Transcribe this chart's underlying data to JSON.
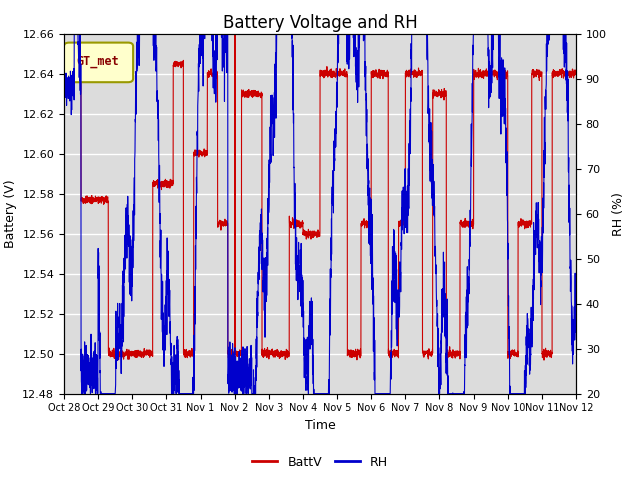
{
  "title": "Battery Voltage and RH",
  "xlabel": "Time",
  "ylabel_left": "Battery (V)",
  "ylabel_right": "RH (%)",
  "legend_label": "GT_met",
  "series": [
    "BattV",
    "RH"
  ],
  "colors": [
    "#cc0000",
    "#0000cc"
  ],
  "ylim_left": [
    12.48,
    12.66
  ],
  "ylim_right": [
    20,
    100
  ],
  "yticks_left": [
    12.48,
    12.5,
    12.52,
    12.54,
    12.56,
    12.58,
    12.6,
    12.62,
    12.64,
    12.66
  ],
  "yticks_right": [
    20,
    30,
    40,
    50,
    60,
    70,
    80,
    90,
    100
  ],
  "xtick_labels": [
    "Oct 28",
    "Oct 29",
    "Oct 30",
    "Oct 31",
    "Nov 1",
    "Nov 2",
    "Nov 3",
    "Nov 4",
    "Nov 5",
    "Nov 6",
    "Nov 7",
    "Nov 8",
    "Nov 9",
    "Nov 10",
    "Nov 11",
    "Nov 12"
  ],
  "bg_color": "#dcdcdc",
  "title_fontsize": 12,
  "axis_fontsize": 9,
  "tick_fontsize": 8,
  "legend_box_color": "#ffffcc",
  "legend_box_edge": "#999900",
  "legend_text_color": "#880000",
  "linewidth": 0.8
}
